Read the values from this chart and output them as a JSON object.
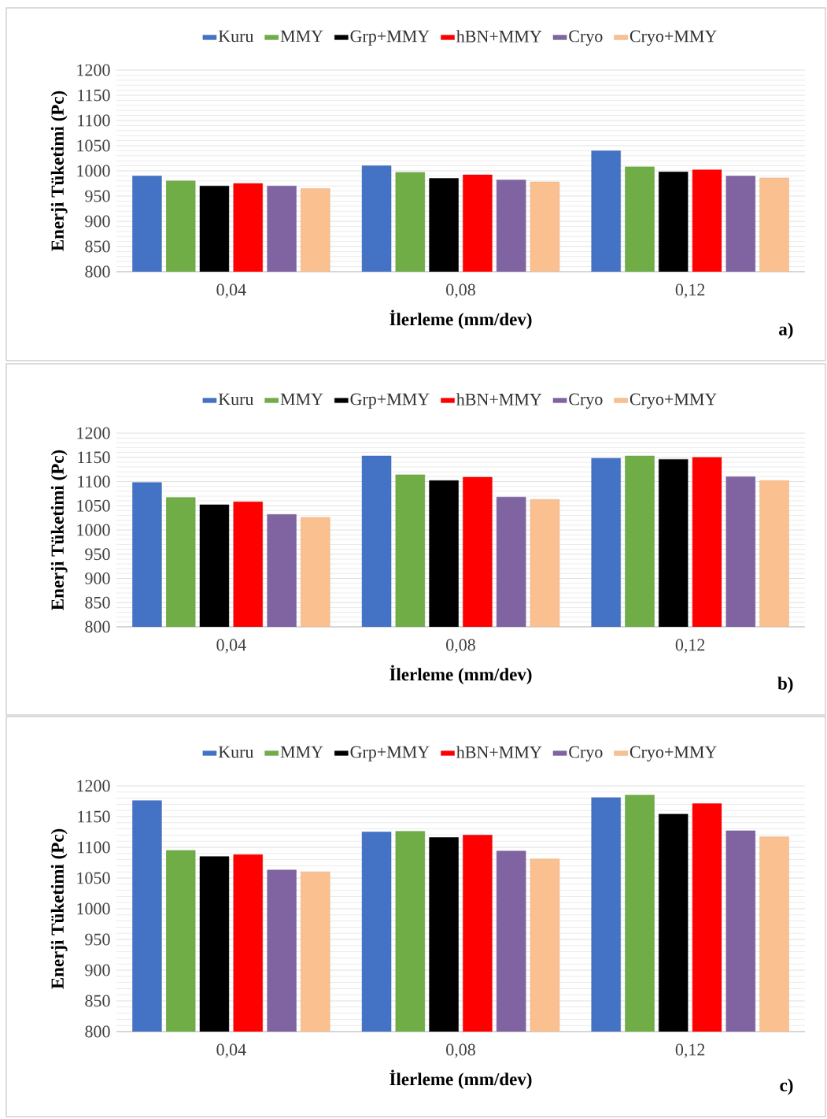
{
  "chart_data": [
    {
      "type": "bar",
      "categories": [
        "0,04",
        "0,08",
        "0,12"
      ],
      "xlabel": "İlerleme (mm/dev)",
      "ylabel": "Enerji Tüketimi (Pc)",
      "ylim": [
        800,
        1200
      ],
      "yticks": [
        800,
        850,
        900,
        950,
        1000,
        1050,
        1100,
        1150,
        1200
      ],
      "grid": "y",
      "legend": "top",
      "annotations": [
        "a)"
      ],
      "series": [
        {
          "name": "Kuru",
          "color": "#4472c4",
          "values": [
            990,
            1010,
            1040
          ]
        },
        {
          "name": "MMY",
          "color": "#70ad47",
          "values": [
            980,
            997,
            1008
          ]
        },
        {
          "name": "Grp+MMY",
          "color": "#000000",
          "values": [
            970,
            985,
            998
          ]
        },
        {
          "name": "hBN+MMY",
          "color": "#ff0000",
          "values": [
            975,
            992,
            1002
          ]
        },
        {
          "name": "Cryo",
          "color": "#8064a2",
          "values": [
            970,
            982,
            990
          ]
        },
        {
          "name": "Cryo+MMY",
          "color": "#fac090",
          "values": [
            965,
            978,
            986
          ]
        }
      ]
    },
    {
      "type": "bar",
      "categories": [
        "0,04",
        "0,08",
        "0,12"
      ],
      "xlabel": "İlerleme (mm/dev)",
      "ylabel": "Enerji Tüketimi (Pc)",
      "ylim": [
        800,
        1200
      ],
      "yticks": [
        800,
        850,
        900,
        950,
        1000,
        1050,
        1100,
        1150,
        1200
      ],
      "grid": "y",
      "legend": "top",
      "annotations": [
        "b)"
      ],
      "series": [
        {
          "name": "Kuru",
          "color": "#4472c4",
          "values": [
            1098,
            1153,
            1148
          ]
        },
        {
          "name": "MMY",
          "color": "#70ad47",
          "values": [
            1067,
            1114,
            1153
          ]
        },
        {
          "name": "Grp+MMY",
          "color": "#000000",
          "values": [
            1052,
            1102,
            1146
          ]
        },
        {
          "name": "hBN+MMY",
          "color": "#ff0000",
          "values": [
            1058,
            1109,
            1150
          ]
        },
        {
          "name": "Cryo",
          "color": "#8064a2",
          "values": [
            1032,
            1068,
            1110
          ]
        },
        {
          "name": "Cryo+MMY",
          "color": "#fac090",
          "values": [
            1026,
            1063,
            1102
          ]
        }
      ]
    },
    {
      "type": "bar",
      "categories": [
        "0,04",
        "0,08",
        "0,12"
      ],
      "xlabel": "İlerleme (mm/dev)",
      "ylabel": "Enerji Tüketimi (Pc)",
      "ylim": [
        800,
        1200
      ],
      "yticks": [
        800,
        850,
        900,
        950,
        1000,
        1050,
        1100,
        1150,
        1200
      ],
      "grid": "y",
      "legend": "top",
      "annotations": [
        "c)"
      ],
      "series": [
        {
          "name": "Kuru",
          "color": "#4472c4",
          "values": [
            1176,
            1125,
            1181
          ]
        },
        {
          "name": "MMY",
          "color": "#70ad47",
          "values": [
            1095,
            1126,
            1185
          ]
        },
        {
          "name": "Grp+MMY",
          "color": "#000000",
          "values": [
            1085,
            1116,
            1154
          ]
        },
        {
          "name": "hBN+MMY",
          "color": "#ff0000",
          "values": [
            1088,
            1120,
            1171
          ]
        },
        {
          "name": "Cryo",
          "color": "#8064a2",
          "values": [
            1063,
            1094,
            1127
          ]
        },
        {
          "name": "Cryo+MMY",
          "color": "#fac090",
          "values": [
            1060,
            1081,
            1117
          ]
        }
      ]
    }
  ]
}
